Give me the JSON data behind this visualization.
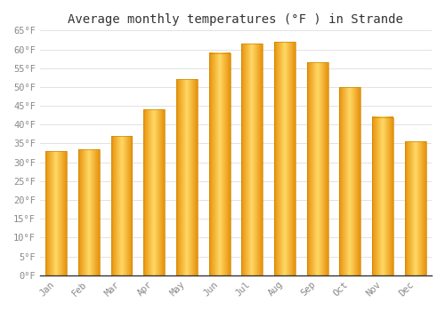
{
  "title": "Average monthly temperatures (°F ) in Strande",
  "months": [
    "Jan",
    "Feb",
    "Mar",
    "Apr",
    "May",
    "Jun",
    "Jul",
    "Aug",
    "Sep",
    "Oct",
    "Nov",
    "Dec"
  ],
  "values": [
    33,
    33.5,
    37,
    44,
    52,
    59,
    61.5,
    62,
    56.5,
    50,
    42,
    35.5
  ],
  "bar_color_left": "#E8900A",
  "bar_color_center": "#FFD966",
  "bar_color_right": "#E8900A",
  "background_color": "#FFFFFF",
  "grid_color": "#DDDDDD",
  "ylim": [
    0,
    65
  ],
  "yticks": [
    0,
    5,
    10,
    15,
    20,
    25,
    30,
    35,
    40,
    45,
    50,
    55,
    60,
    65
  ],
  "title_fontsize": 10,
  "tick_fontsize": 7.5,
  "tick_font_color": "#888888",
  "font_family": "monospace",
  "bar_width": 0.65
}
